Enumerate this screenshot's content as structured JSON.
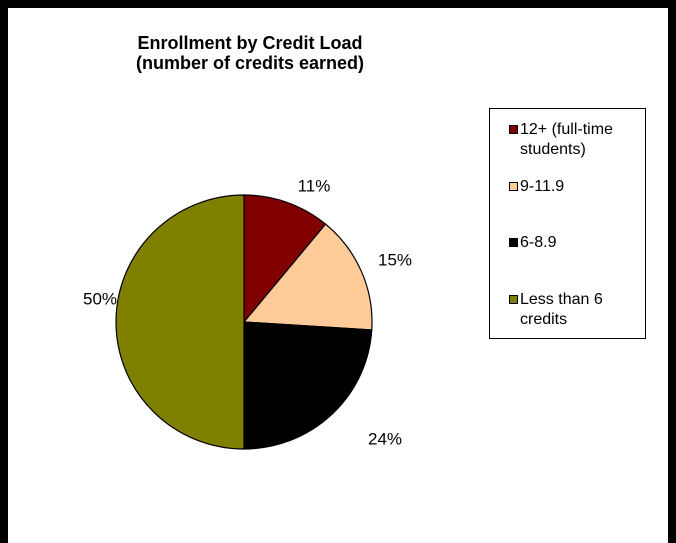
{
  "chart_data": {
    "type": "pie",
    "title": "Enrollment by Credit Load",
    "subtitle": "(number of credits earned)",
    "categories": [
      "12+ (full-time students)",
      "9-11.9",
      "6-8.9",
      "Less than 6 credits"
    ],
    "values": [
      11,
      15,
      24,
      50
    ],
    "labels": [
      "11%",
      "15%",
      "24%",
      "50%"
    ],
    "colors": [
      "#800000",
      "#FFCC99",
      "#000000",
      "#808000"
    ],
    "legend_position": "right",
    "legend": [
      [
        "12+ (full-time",
        "students)"
      ],
      [
        "9-11.9"
      ],
      [
        "6-8.9"
      ],
      [
        "Less than 6",
        "credits"
      ]
    ]
  }
}
